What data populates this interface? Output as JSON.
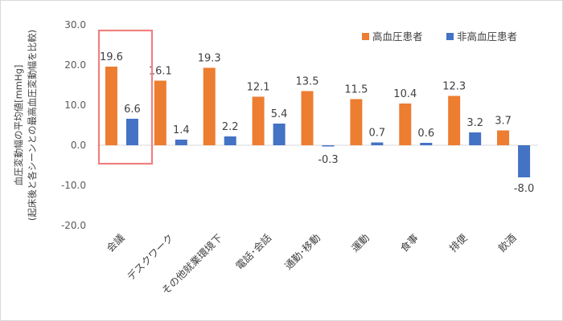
{
  "chart_data": {
    "type": "bar",
    "title": "",
    "ylabel_lines": [
      "血圧変動幅の平均値[mmHg]",
      "(起床後と各シーンとの最高血圧変動幅を比較)"
    ],
    "ylim": [
      -20,
      30
    ],
    "yticks": [
      30,
      20,
      10,
      0,
      -10,
      -20
    ],
    "ytick_labels": [
      "30.0",
      "20.0",
      "10.0",
      "0.0",
      "-10.0",
      "-20.0"
    ],
    "categories": [
      "会議",
      "デスクワーク",
      "その他就業環境下",
      "電話･会話",
      "通勤･移動",
      "運動",
      "食事",
      "排便",
      "飲酒"
    ],
    "series": [
      {
        "name": "高血圧患者",
        "color": "#ED7D31",
        "values": [
          19.6,
          16.1,
          19.3,
          12.1,
          13.5,
          11.5,
          10.4,
          12.3,
          3.7
        ],
        "labels": [
          "19.6",
          "16.1",
          "19.3",
          "12.1",
          "13.5",
          "11.5",
          "10.4",
          "12.3",
          "3.7"
        ]
      },
      {
        "name": "非高血圧患者",
        "color": "#4472C4",
        "values": [
          6.6,
          1.4,
          2.2,
          5.4,
          -0.3,
          0.7,
          0.6,
          3.2,
          -8.0
        ],
        "labels": [
          "6.6",
          "1.4",
          "2.2",
          "5.4",
          "-0.3",
          "0.7",
          "0.6",
          "3.2",
          "-8.0"
        ]
      }
    ],
    "highlight": {
      "category_index": 0,
      "color": "#F08080"
    },
    "legend_position": "top-right",
    "grid": false
  }
}
